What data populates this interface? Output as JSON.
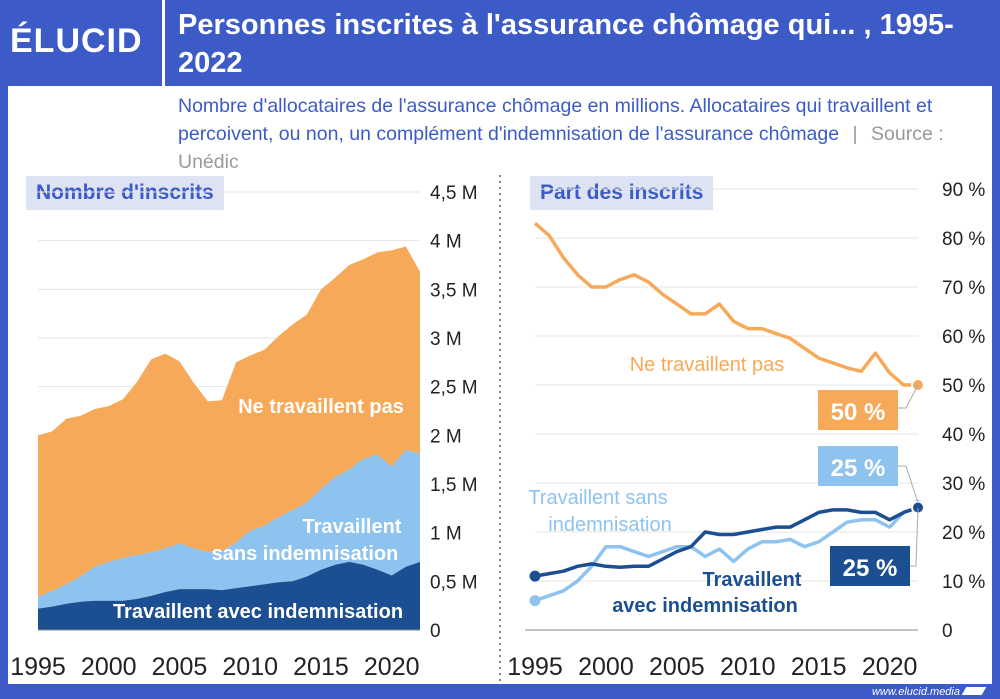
{
  "header": {
    "logo": "ÉLUCID",
    "title": "Personnes inscrites à l'assurance chômage qui... , 1995-2022"
  },
  "subtitle": {
    "text": "Nombre d'allocataires de l'assurance chômage en millions. Allocataires qui travaillent et percoivent, ou non, un complément d'indemnisation de l'assurance chômage",
    "separator": "|",
    "source": "Source : Unédic"
  },
  "footer": {
    "url": "www.elucid.media"
  },
  "colors": {
    "background": "#3d5bc6",
    "orange": "#f7a95a",
    "light_blue": "#8ec3ef",
    "dark_blue": "#1c4f91"
  },
  "chart_data": [
    {
      "type": "area",
      "title": "Nombre d'inscrits",
      "stacked": true,
      "x": [
        1995,
        1996,
        1997,
        1998,
        1999,
        2000,
        2001,
        2002,
        2003,
        2004,
        2005,
        2006,
        2007,
        2008,
        2009,
        2010,
        2011,
        2012,
        2013,
        2014,
        2015,
        2016,
        2017,
        2018,
        2019,
        2020,
        2021,
        2022
      ],
      "series": [
        {
          "name": "Travaillent avec indemnisation",
          "label": "Travaillent avec indemnisation",
          "values": [
            0.22,
            0.24,
            0.27,
            0.29,
            0.3,
            0.3,
            0.3,
            0.32,
            0.35,
            0.39,
            0.42,
            0.42,
            0.42,
            0.41,
            0.43,
            0.45,
            0.47,
            0.49,
            0.5,
            0.55,
            0.62,
            0.67,
            0.7,
            0.67,
            0.62,
            0.56,
            0.65,
            0.7
          ]
        },
        {
          "name": "Travaillent sans indemnisation",
          "label_line1": "Travaillent",
          "label_line2": "sans indemnisation",
          "values": [
            0.12,
            0.16,
            0.2,
            0.26,
            0.35,
            0.4,
            0.44,
            0.45,
            0.45,
            0.45,
            0.47,
            0.42,
            0.38,
            0.4,
            0.47,
            0.57,
            0.6,
            0.67,
            0.73,
            0.76,
            0.83,
            0.9,
            0.95,
            1.09,
            1.18,
            1.12,
            1.2,
            1.11
          ]
        },
        {
          "name": "Ne travaillent pas",
          "label": "Ne travaillent pas",
          "values": [
            1.66,
            1.64,
            1.7,
            1.65,
            1.62,
            1.6,
            1.63,
            1.78,
            1.98,
            2.0,
            1.87,
            1.7,
            1.55,
            1.55,
            1.85,
            1.8,
            1.81,
            1.86,
            1.91,
            1.93,
            2.05,
            2.05,
            2.1,
            2.05,
            2.08,
            2.22,
            2.09,
            1.87
          ]
        }
      ],
      "y_ticks": [
        "0",
        "0,5 M",
        "1 M",
        "1,5 M",
        "2 M",
        "2,5 M",
        "3 M",
        "3,5 M",
        "4 M",
        "4,5 M"
      ],
      "ylim": [
        0,
        4.5
      ],
      "x_ticks": [
        "1995",
        "2000",
        "2005",
        "2010",
        "2015",
        "2020"
      ]
    },
    {
      "type": "line",
      "title": "Part des inscrits",
      "x": [
        1995,
        1996,
        1997,
        1998,
        1999,
        2000,
        2001,
        2002,
        2003,
        2004,
        2005,
        2006,
        2007,
        2008,
        2009,
        2010,
        2011,
        2012,
        2013,
        2014,
        2015,
        2016,
        2017,
        2018,
        2019,
        2020,
        2021,
        2022
      ],
      "series": [
        {
          "name": "Ne travaillent pas",
          "label": "Ne travaillent pas",
          "end_label": "50 %",
          "values": [
            83,
            80.5,
            76,
            72.5,
            70,
            70,
            71.5,
            72.5,
            71,
            68.5,
            66.5,
            64.5,
            64.5,
            66.5,
            63,
            61.5,
            61.5,
            60.5,
            59.5,
            57.5,
            55.5,
            54.5,
            53.5,
            52.8,
            56.5,
            52.5,
            50,
            50
          ]
        },
        {
          "name": "Travaillent sans indemnisation",
          "label_line1": "Travaillent sans",
          "label_line2": "indemnisation",
          "end_label": "25 %",
          "values": [
            6,
            7,
            8,
            10,
            13,
            17,
            17,
            16,
            15,
            16,
            17,
            17,
            15,
            16.5,
            14,
            16.5,
            18,
            18,
            18.5,
            17,
            18,
            20,
            22,
            22.5,
            22.5,
            21,
            24,
            25
          ]
        },
        {
          "name": "Travaillent avec indemnisation",
          "label_line1": "Travaillent",
          "label_line2": "avec indemnisation",
          "end_label": "25 %",
          "values": [
            11,
            11.5,
            12,
            13,
            13.5,
            13,
            12.8,
            13,
            13,
            14.5,
            16,
            17,
            20,
            19.5,
            19.5,
            20,
            20.5,
            21,
            21,
            22.5,
            24,
            24.5,
            24.5,
            24,
            24,
            22.5,
            24,
            25
          ]
        }
      ],
      "y_ticks": [
        "0",
        "10 %",
        "20 %",
        "30 %",
        "40 %",
        "50 %",
        "60 %",
        "70 %",
        "80 %",
        "90 %"
      ],
      "ylim": [
        0,
        90
      ],
      "x_ticks": [
        "1995",
        "2000",
        "2005",
        "2010",
        "2015",
        "2020"
      ]
    }
  ]
}
